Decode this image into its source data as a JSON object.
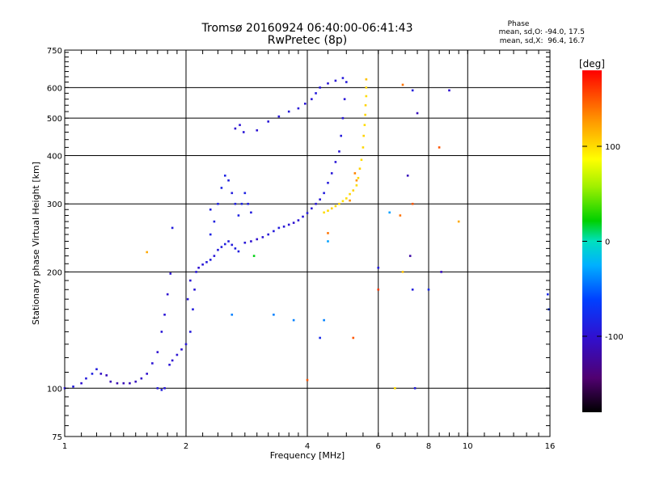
{
  "header": {
    "title": "Tromsø 20160924 06:40:00-06:41:43",
    "subtitle": "RwPretec (8p)"
  },
  "phase_stats": {
    "heading": "Phase",
    "line_o": "mean, sd,O: -94.0, 17.5",
    "line_x": "mean, sd,X:  96.4, 16.7"
  },
  "colorbar": {
    "unit": "[deg]",
    "range": [
      -180,
      180
    ],
    "ticks": [
      100,
      0,
      -100
    ],
    "tick_labels": [
      "100",
      "0",
      "-100"
    ]
  },
  "colors": {
    "o_mode": "#1f3fe0",
    "o_mode_low": "#3a1ab8",
    "x_mode": "#f2d400",
    "x_mode_orange": "#f0a000",
    "scatter_cyan": "#1aa8e8",
    "gridline": "#000000"
  },
  "chart_data": {
    "type": "scatter",
    "title": "Tromsø 20160924 06:40:00-06:41:43",
    "subtitle": "RwPretec (8p)",
    "xlabel": "Frequency [MHz]",
    "ylabel": "Stationary phase Virtual Height [km]",
    "x_scale": "log",
    "y_scale": "log",
    "xlim": [
      1,
      16
    ],
    "ylim": [
      75,
      750
    ],
    "x_ticks": [
      1,
      2,
      4,
      6,
      8,
      10,
      16
    ],
    "x_tick_labels": [
      "1",
      "2",
      "4",
      "6",
      "8",
      "10",
      "16"
    ],
    "y_ticks": [
      75,
      100,
      200,
      300,
      400,
      500,
      600,
      750
    ],
    "y_tick_labels": [
      "75",
      "100",
      "200",
      "300",
      "400",
      "500",
      "600",
      "750"
    ],
    "grid": true,
    "colorscale_label": "[deg]",
    "series": [
      {
        "points": [
          [
            1.0,
            100,
            -95
          ],
          [
            1.05,
            101,
            -90
          ],
          [
            1.1,
            103,
            -100
          ],
          [
            1.13,
            106,
            -92
          ],
          [
            1.17,
            109,
            -88
          ],
          [
            1.2,
            112,
            -90
          ],
          [
            1.23,
            109,
            -105
          ],
          [
            1.27,
            108,
            -110
          ],
          [
            1.3,
            104,
            -112
          ],
          [
            1.35,
            103,
            -115
          ],
          [
            1.4,
            103,
            -112
          ],
          [
            1.45,
            103,
            -110
          ],
          [
            1.5,
            104,
            -108
          ],
          [
            1.55,
            106,
            -104
          ],
          [
            1.6,
            109,
            -102
          ],
          [
            1.65,
            116,
            -98
          ],
          [
            1.7,
            124,
            -100
          ],
          [
            1.74,
            140,
            -95
          ],
          [
            1.77,
            155,
            -96
          ],
          [
            1.8,
            175,
            -100
          ],
          [
            1.83,
            198,
            -98
          ],
          [
            1.7,
            100,
            -92
          ],
          [
            1.74,
            99,
            -90
          ],
          [
            1.77,
            100,
            -94
          ],
          [
            1.82,
            115,
            -96
          ],
          [
            1.85,
            118,
            -100
          ],
          [
            1.9,
            122,
            -98
          ],
          [
            1.95,
            126,
            -100
          ],
          [
            2.0,
            130,
            -96
          ],
          [
            2.05,
            140,
            -92
          ],
          [
            2.08,
            160,
            -90
          ],
          [
            2.1,
            180,
            -96
          ],
          [
            2.12,
            200,
            -94
          ],
          [
            2.05,
            190,
            -97
          ],
          [
            2.02,
            170,
            -95
          ],
          [
            2.15,
            205,
            -100
          ],
          [
            2.2,
            209,
            -96
          ],
          [
            2.25,
            212,
            -92
          ],
          [
            2.3,
            215,
            -90
          ],
          [
            2.35,
            220,
            -95
          ],
          [
            2.4,
            228,
            -92
          ],
          [
            2.45,
            232,
            -90
          ],
          [
            2.5,
            236,
            -88
          ],
          [
            2.55,
            240,
            -90
          ],
          [
            2.6,
            235,
            -92
          ],
          [
            2.65,
            230,
            -88
          ],
          [
            2.7,
            226,
            -90
          ],
          [
            2.8,
            238,
            -95
          ],
          [
            2.9,
            240,
            -100
          ],
          [
            3.0,
            243,
            -102
          ],
          [
            3.1,
            246,
            -98
          ],
          [
            3.2,
            250,
            -95
          ],
          [
            3.3,
            255,
            -92
          ],
          [
            3.4,
            260,
            -90
          ],
          [
            3.5,
            262,
            -95
          ],
          [
            3.6,
            265,
            -98
          ],
          [
            3.7,
            268,
            -100
          ],
          [
            3.8,
            272,
            -96
          ],
          [
            3.9,
            278,
            -94
          ],
          [
            4.0,
            284,
            -92
          ],
          [
            4.1,
            292,
            -95
          ],
          [
            4.2,
            300,
            -96
          ],
          [
            4.3,
            308,
            -94
          ],
          [
            4.4,
            320,
            -90
          ],
          [
            4.5,
            340,
            -92
          ],
          [
            4.6,
            360,
            -94
          ],
          [
            4.7,
            385,
            -96
          ],
          [
            4.8,
            410,
            -95
          ],
          [
            4.85,
            450,
            -92
          ],
          [
            4.9,
            500,
            -94
          ],
          [
            4.95,
            560,
            -96
          ],
          [
            5.0,
            620,
            -92
          ],
          [
            2.3,
            250,
            -85
          ],
          [
            2.35,
            270,
            -88
          ],
          [
            2.4,
            300,
            -86
          ],
          [
            2.45,
            330,
            -84
          ],
          [
            2.5,
            355,
            -85
          ],
          [
            2.55,
            345,
            -88
          ],
          [
            2.6,
            320,
            -90
          ],
          [
            2.65,
            300,
            -88
          ],
          [
            2.7,
            280,
            -86
          ],
          [
            2.75,
            300,
            -84
          ],
          [
            2.8,
            320,
            -86
          ],
          [
            2.85,
            300,
            -88
          ],
          [
            2.9,
            285,
            -90
          ],
          [
            2.65,
            470,
            -100
          ],
          [
            2.72,
            480,
            -98
          ],
          [
            2.78,
            460,
            -96
          ],
          [
            3.0,
            465,
            -98
          ],
          [
            3.2,
            490,
            -96
          ],
          [
            3.4,
            505,
            -94
          ],
          [
            3.6,
            520,
            -92
          ],
          [
            3.8,
            530,
            -94
          ],
          [
            3.95,
            545,
            -96
          ],
          [
            4.1,
            560,
            -95
          ],
          [
            4.2,
            580,
            -92
          ],
          [
            4.3,
            600,
            -94
          ],
          [
            4.5,
            615,
            -96
          ],
          [
            4.7,
            625,
            -95
          ],
          [
            4.9,
            635,
            -92
          ]
        ]
      },
      {
        "points": [
          [
            4.4,
            285,
            100
          ],
          [
            4.5,
            288,
            102
          ],
          [
            4.6,
            292,
            105
          ],
          [
            4.7,
            296,
            100
          ],
          [
            4.8,
            300,
            102
          ],
          [
            4.9,
            305,
            98
          ],
          [
            5.0,
            310,
            100
          ],
          [
            5.1,
            318,
            102
          ],
          [
            5.2,
            325,
            104
          ],
          [
            5.3,
            335,
            100
          ],
          [
            5.35,
            350,
            102
          ],
          [
            5.4,
            370,
            104
          ],
          [
            5.45,
            390,
            100
          ],
          [
            5.5,
            420,
            102
          ],
          [
            5.52,
            450,
            104
          ],
          [
            5.55,
            480,
            100
          ],
          [
            5.57,
            510,
            102
          ],
          [
            5.58,
            540,
            104
          ],
          [
            5.6,
            570,
            100
          ],
          [
            5.6,
            600,
            102
          ],
          [
            5.6,
            630,
            100
          ],
          [
            5.3,
            345,
            130
          ],
          [
            5.25,
            360,
            135
          ],
          [
            4.5,
            252,
            140
          ],
          [
            5.1,
            306,
            130
          ]
        ]
      }
    ],
    "scattered_points": [
      [
        1.6,
        225,
        120
      ],
      [
        1.85,
        260,
        -90
      ],
      [
        2.3,
        290,
        -88
      ],
      [
        2.6,
        155,
        -40
      ],
      [
        2.95,
        220,
        20
      ],
      [
        3.3,
        155,
        -40
      ],
      [
        3.7,
        150,
        -40
      ],
      [
        4.0,
        105,
        150
      ],
      [
        4.3,
        135,
        -80
      ],
      [
        4.4,
        150,
        -40
      ],
      [
        4.5,
        240,
        -30
      ],
      [
        5.2,
        135,
        150
      ],
      [
        5.6,
        630,
        110
      ],
      [
        6.0,
        205,
        -90
      ],
      [
        6.0,
        180,
        160
      ],
      [
        6.4,
        285,
        -30
      ],
      [
        6.6,
        100,
        100
      ],
      [
        6.8,
        280,
        140
      ],
      [
        6.9,
        200,
        110
      ],
      [
        6.9,
        610,
        140
      ],
      [
        7.1,
        355,
        -110
      ],
      [
        7.2,
        220,
        -120
      ],
      [
        7.3,
        300,
        150
      ],
      [
        7.3,
        180,
        -90
      ],
      [
        7.3,
        590,
        -90
      ],
      [
        7.4,
        100,
        -90
      ],
      [
        7.5,
        515,
        -110
      ],
      [
        8.0,
        180,
        -80
      ],
      [
        8.5,
        420,
        150
      ],
      [
        8.6,
        200,
        -110
      ],
      [
        9.0,
        590,
        -100
      ],
      [
        9.5,
        270,
        120
      ],
      [
        15.8,
        175,
        -80
      ],
      [
        15.9,
        160,
        -70
      ]
    ]
  }
}
